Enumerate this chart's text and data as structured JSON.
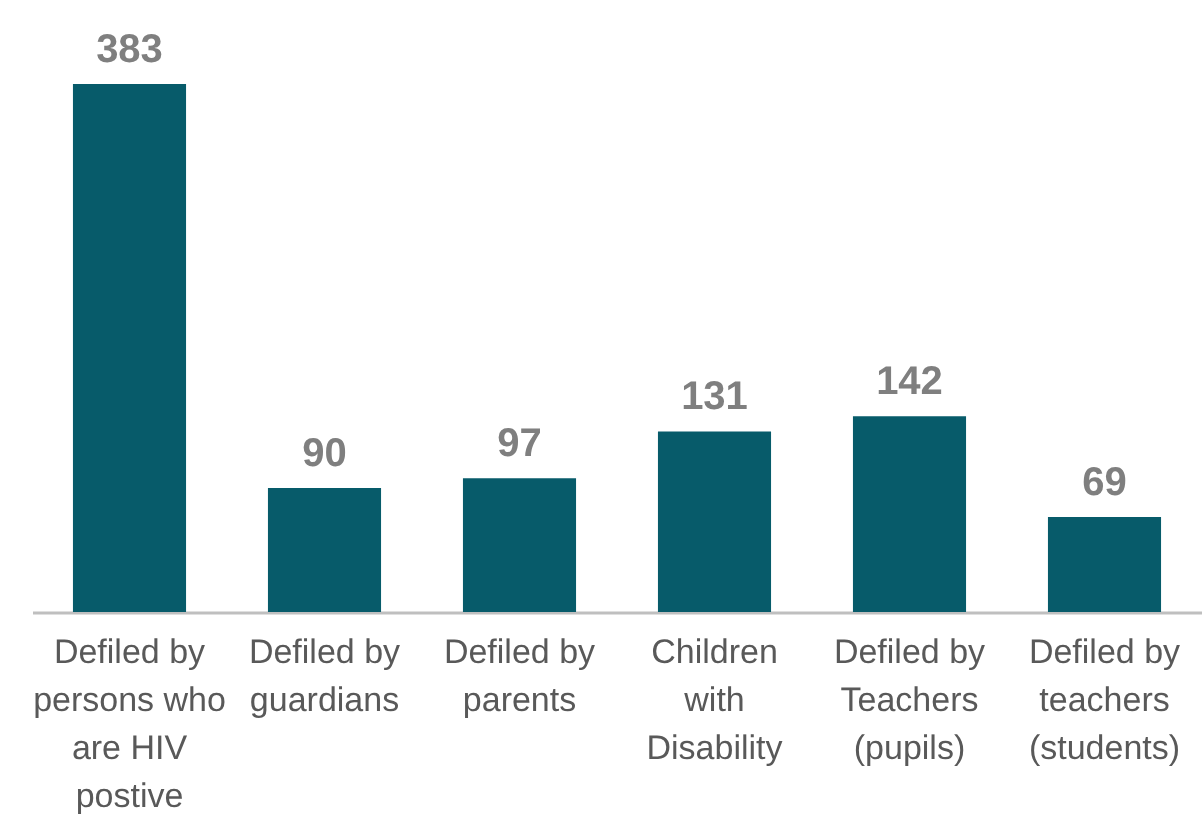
{
  "chart_data": {
    "type": "bar",
    "categories": [
      "Defiled by persons who are HIV postive",
      "Defiled by guardians",
      "Defiled by parents",
      "Children with Disability",
      "Defiled by Teachers (pupils)",
      "Defiled by teachers (students)"
    ],
    "values": [
      383,
      90,
      97,
      131,
      142,
      69
    ],
    "color": "#075b6a",
    "data_labels": true
  }
}
